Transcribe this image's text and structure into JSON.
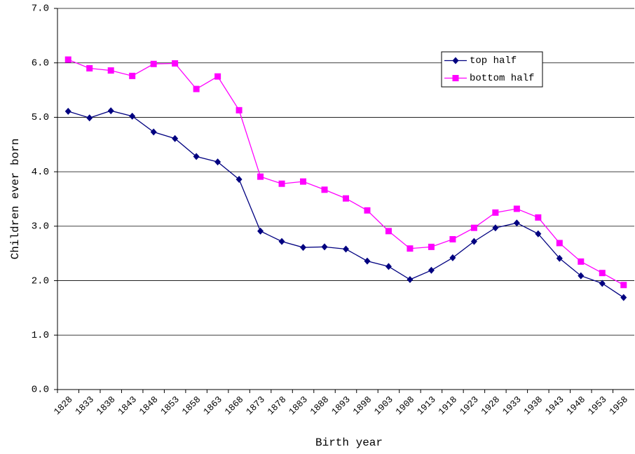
{
  "chart_data": {
    "type": "line",
    "x_label": "Birth year",
    "y_label": "Children ever born",
    "categories": [
      "1828",
      "1833",
      "1838",
      "1843",
      "1848",
      "1853",
      "1858",
      "1863",
      "1868",
      "1873",
      "1878",
      "1883",
      "1888",
      "1893",
      "1898",
      "1903",
      "1908",
      "1913",
      "1918",
      "1923",
      "1928",
      "1933",
      "1938",
      "1943",
      "1948",
      "1953",
      "1958"
    ],
    "series": [
      {
        "name": "top half",
        "color": "#000080",
        "marker": "diamond",
        "values": [
          5.11,
          4.99,
          5.12,
          5.02,
          4.73,
          4.61,
          4.28,
          4.18,
          3.86,
          2.91,
          2.72,
          2.61,
          2.62,
          2.58,
          2.36,
          2.26,
          2.02,
          2.19,
          2.42,
          2.72,
          2.97,
          3.06,
          2.86,
          2.41,
          2.09,
          1.95,
          1.69
        ]
      },
      {
        "name": "bottom half",
        "color": "#ff00ff",
        "marker": "square",
        "values": [
          6.06,
          5.9,
          5.86,
          5.76,
          5.98,
          5.99,
          5.52,
          5.75,
          5.13,
          3.91,
          3.78,
          3.82,
          3.67,
          3.51,
          3.29,
          2.91,
          2.59,
          2.62,
          2.76,
          2.97,
          3.25,
          3.32,
          3.16,
          2.69,
          2.35,
          2.14,
          1.92
        ]
      }
    ],
    "ylim": [
      0,
      7
    ],
    "yticks": [
      {
        "value": 0,
        "label": "0.0"
      },
      {
        "value": 1,
        "label": "1.0"
      },
      {
        "value": 2,
        "label": "2.0"
      },
      {
        "value": 3,
        "label": "3.0"
      },
      {
        "value": 4,
        "label": "4.0"
      },
      {
        "value": 5,
        "label": "5.0"
      },
      {
        "value": 6,
        "label": "6.0"
      },
      {
        "value": 7,
        "label": "7.0"
      }
    ],
    "grid": true
  }
}
